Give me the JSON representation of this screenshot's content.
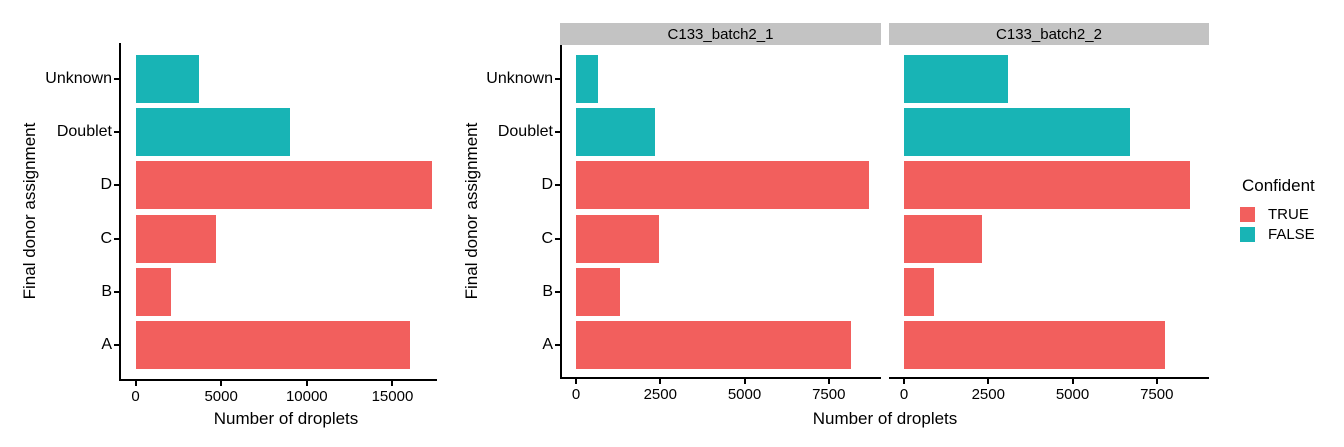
{
  "figure": {
    "background": "#FFFFFF",
    "axis_color": "#000000",
    "strip_color": "#C3C3C3"
  },
  "chart_data": {
    "type": "bar",
    "orientation": "horizontal",
    "xlabel": "Number of droplets",
    "ylabel": "Final donor assignment",
    "categories_top_to_bottom": [
      "Unknown",
      "Doublet",
      "D",
      "C",
      "B",
      "A"
    ],
    "category_confident": [
      "FALSE",
      "FALSE",
      "TRUE",
      "TRUE",
      "TRUE",
      "TRUE"
    ],
    "legend": {
      "title": "Confident",
      "position": "right",
      "entries": [
        {
          "label": "TRUE",
          "color": "#F25F5D"
        },
        {
          "label": "FALSE",
          "color": "#18B4B5"
        }
      ]
    },
    "grid": false,
    "panels": [
      {
        "id": "overall",
        "strip_label": "",
        "has_strip": false,
        "xlim": [
          0,
          17600
        ],
        "xticks": [
          0,
          5000,
          10000,
          15000
        ],
        "values": [
          3700,
          9000,
          17300,
          4700,
          2100,
          16000
        ]
      },
      {
        "id": "C133_batch2_1",
        "strip_label": "C133_batch2_1",
        "has_strip": true,
        "xlim": [
          0,
          9050
        ],
        "xticks": [
          0,
          2500,
          5000,
          7500
        ],
        "values": [
          650,
          2350,
          8700,
          2450,
          1300,
          8150
        ]
      },
      {
        "id": "C133_batch2_2",
        "strip_label": "C133_batch2_2",
        "has_strip": true,
        "xlim": [
          0,
          9050
        ],
        "xticks": [
          0,
          2500,
          5000,
          7500
        ],
        "values": [
          3100,
          6700,
          8500,
          2300,
          900,
          7750
        ]
      }
    ]
  }
}
